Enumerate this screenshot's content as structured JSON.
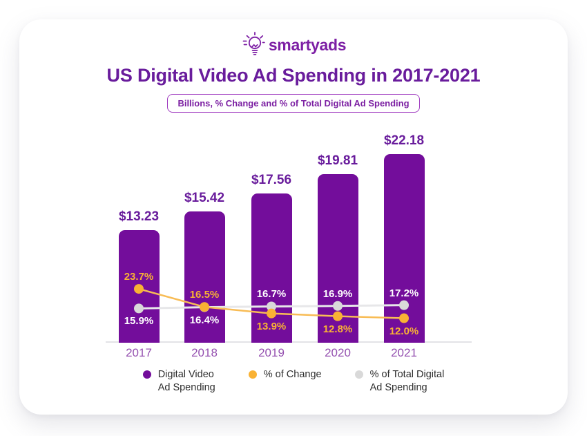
{
  "brand": {
    "name": "smartyads"
  },
  "header": {
    "title": "US Digital Video Ad Spending in 2017-2021",
    "subtitle_badge": "Billions, % Change and % of Total Digital Ad Spending"
  },
  "colors": {
    "bar_purple": "#730D9B",
    "title_purple": "#691C9C",
    "year_label_purple": "#9551B0",
    "change_orange": "#F9B234",
    "change_line_orange": "#F8BC55",
    "total_gray_dot": "#D9D9D9",
    "total_gray_line": "#E7E7E9",
    "axis_gray": "#E3E3E6",
    "legend_text": "#2d2d2d",
    "brand_purple": "#7D1FA5"
  },
  "chart_data": {
    "type": "bar",
    "title": "US Digital Video Ad Spending in 2017-2021",
    "subtitle": "Billions, % Change and % of Total Digital Ad Spending",
    "categories": [
      "2017",
      "2018",
      "2019",
      "2020",
      "2021"
    ],
    "grid": false,
    "legend_position": "bottom",
    "series": [
      {
        "name": "Digital Video Ad Spending",
        "type": "bar",
        "unit": "USD billions",
        "color": "#730D9B",
        "values": [
          13.23,
          15.42,
          17.56,
          19.81,
          22.18
        ],
        "data_labels": [
          "$13.23",
          "$15.42",
          "$17.56",
          "$19.81",
          "$22.18"
        ]
      },
      {
        "name": "% of Change",
        "type": "line",
        "unit": "percent",
        "color": "#F9B234",
        "line_color": "#F8BC55",
        "label_color": "#F9B234",
        "values": [
          23.7,
          16.5,
          13.9,
          12.8,
          12.0
        ],
        "data_labels": [
          "23.7%",
          "16.5%",
          "13.9%",
          "12.8%",
          "12.0%"
        ],
        "label_side": [
          "above",
          "above",
          "below",
          "below",
          "below"
        ]
      },
      {
        "name": "% of Total Digital Ad Spending",
        "type": "line",
        "unit": "percent",
        "color": "#D9D9D9",
        "line_color": "#E7E7E9",
        "label_color": "#FFFFFF",
        "values": [
          15.9,
          16.4,
          16.7,
          16.9,
          17.2
        ],
        "data_labels": [
          "15.9%",
          "16.4%",
          "16.7%",
          "16.9%",
          "17.2%"
        ],
        "label_side": [
          "below",
          "below",
          "above",
          "above",
          "above"
        ]
      }
    ]
  },
  "legend": {
    "items": [
      {
        "label": "Digital Video\nAd Spending",
        "color": "#730D9B"
      },
      {
        "label": "% of Change",
        "color": "#F9B234"
      },
      {
        "label": "% of Total Digital\nAd Spending",
        "color": "#D9D9D9"
      }
    ]
  }
}
